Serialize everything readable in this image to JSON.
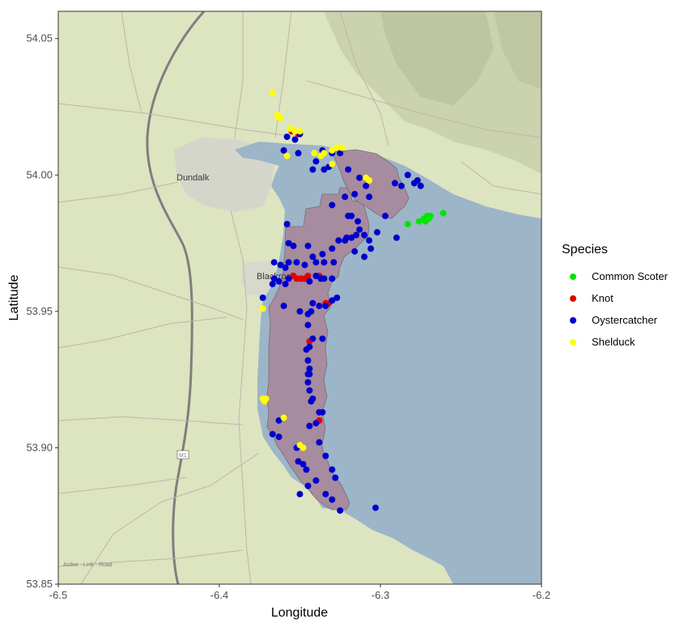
{
  "map": {
    "xlabel": "Longitude",
    "ylabel": "Latitude",
    "xlim": [
      -6.5,
      -6.2
    ],
    "ylim": [
      53.85,
      54.06
    ],
    "x_ticks": [
      -6.5,
      -6.4,
      -6.3,
      -6.2
    ],
    "y_ticks": [
      53.85,
      53.9,
      53.95,
      54.0,
      54.05
    ],
    "x_tick_labels": [
      "-6.5",
      "-6.4",
      "-6.3",
      "-6.2"
    ],
    "y_tick_labels": [
      "53.85",
      "53.90",
      "53.95",
      "54.00",
      "54.05"
    ],
    "place_labels": {
      "town": "Dundalk",
      "village": "Blackrock",
      "road": "Ardee - Link - Road",
      "motorway": "M1"
    },
    "colors": {
      "sea": "#9db5c9",
      "land": "#dde4c0",
      "survey_area": "#a8899d"
    }
  },
  "legend": {
    "title": "Species",
    "items": [
      {
        "label": "Common Scoter",
        "color": "#00e600"
      },
      {
        "label": "Knot",
        "color": "#e60000"
      },
      {
        "label": "Oystercatcher",
        "color": "#0000cc"
      },
      {
        "label": "Shelduck",
        "color": "#ffff00"
      }
    ]
  },
  "chart_data": {
    "type": "scatter",
    "xlabel": "Longitude",
    "ylabel": "Latitude",
    "xlim": [
      -6.5,
      -6.2
    ],
    "ylim": [
      53.85,
      54.06
    ],
    "series": [
      {
        "name": "Common Scoter",
        "color": "#00e600",
        "points": [
          [
            -6.283,
            53.982
          ],
          [
            -6.276,
            53.983
          ],
          [
            -6.273,
            53.984
          ],
          [
            -6.271,
            53.985
          ],
          [
            -6.27,
            53.984
          ],
          [
            -6.269,
            53.985
          ],
          [
            -6.272,
            53.983
          ],
          [
            -6.261,
            53.986
          ]
        ]
      },
      {
        "name": "Knot",
        "color": "#e60000",
        "points": [
          [
            -6.355,
            54.016
          ],
          [
            -6.351,
            54.015
          ],
          [
            -6.349,
            53.962
          ],
          [
            -6.352,
            53.962
          ],
          [
            -6.354,
            53.963
          ],
          [
            -6.347,
            53.962
          ],
          [
            -6.345,
            53.963
          ],
          [
            -6.35,
            53.962
          ],
          [
            -6.338,
            53.963
          ],
          [
            -6.334,
            53.953
          ],
          [
            -6.332,
            53.953
          ],
          [
            -6.344,
            53.939
          ],
          [
            -6.338,
            53.91
          ]
        ]
      },
      {
        "name": "Oystercatcher",
        "color": "#0000cc",
        "points": [
          [
            -6.358,
            54.014
          ],
          [
            -6.353,
            54.013
          ],
          [
            -6.35,
            54.015
          ],
          [
            -6.351,
            54.008
          ],
          [
            -6.36,
            54.009
          ],
          [
            -6.342,
            54.002
          ],
          [
            -6.34,
            54.005
          ],
          [
            -6.336,
            54.009
          ],
          [
            -6.33,
            54.008
          ],
          [
            -6.325,
            54.008
          ],
          [
            -6.332,
            54.003
          ],
          [
            -6.335,
            54.002
          ],
          [
            -6.32,
            54.002
          ],
          [
            -6.313,
            53.999
          ],
          [
            -6.309,
            53.996
          ],
          [
            -6.307,
            53.992
          ],
          [
            -6.297,
            53.985
          ],
          [
            -6.291,
            53.997
          ],
          [
            -6.283,
            54.0
          ],
          [
            -6.279,
            53.997
          ],
          [
            -6.277,
            53.998
          ],
          [
            -6.275,
            53.996
          ],
          [
            -6.287,
            53.996
          ],
          [
            -6.302,
            53.979
          ],
          [
            -6.29,
            53.977
          ],
          [
            -6.316,
            53.993
          ],
          [
            -6.322,
            53.992
          ],
          [
            -6.33,
            53.989
          ],
          [
            -6.322,
            53.976
          ],
          [
            -6.32,
            53.985
          ],
          [
            -6.318,
            53.985
          ],
          [
            -6.314,
            53.983
          ],
          [
            -6.31,
            53.978
          ],
          [
            -6.306,
            53.973
          ],
          [
            -6.358,
            53.982
          ],
          [
            -6.357,
            53.975
          ],
          [
            -6.354,
            53.974
          ],
          [
            -6.345,
            53.974
          ],
          [
            -6.342,
            53.97
          ],
          [
            -6.336,
            53.971
          ],
          [
            -6.33,
            53.973
          ],
          [
            -6.326,
            53.976
          ],
          [
            -6.321,
            53.977
          ],
          [
            -6.318,
            53.977
          ],
          [
            -6.315,
            53.978
          ],
          [
            -6.313,
            53.98
          ],
          [
            -6.316,
            53.972
          ],
          [
            -6.307,
            53.976
          ],
          [
            -6.31,
            53.97
          ],
          [
            -6.366,
            53.968
          ],
          [
            -6.362,
            53.967
          ],
          [
            -6.359,
            53.966
          ],
          [
            -6.357,
            53.968
          ],
          [
            -6.352,
            53.968
          ],
          [
            -6.347,
            53.967
          ],
          [
            -6.34,
            53.968
          ],
          [
            -6.335,
            53.968
          ],
          [
            -6.329,
            53.968
          ],
          [
            -6.33,
            53.962
          ],
          [
            -6.335,
            53.962
          ],
          [
            -6.366,
            53.962
          ],
          [
            -6.367,
            53.96
          ],
          [
            -6.363,
            53.961
          ],
          [
            -6.359,
            53.96
          ],
          [
            -6.357,
            53.962
          ],
          [
            -6.344,
            53.961
          ],
          [
            -6.34,
            53.963
          ],
          [
            -6.337,
            53.962
          ],
          [
            -6.373,
            53.955
          ],
          [
            -6.36,
            53.952
          ],
          [
            -6.342,
            53.953
          ],
          [
            -6.338,
            53.952
          ],
          [
            -6.334,
            53.952
          ],
          [
            -6.33,
            53.954
          ],
          [
            -6.327,
            53.955
          ],
          [
            -6.343,
            53.95
          ],
          [
            -6.345,
            53.949
          ],
          [
            -6.35,
            53.95
          ],
          [
            -6.345,
            53.945
          ],
          [
            -6.342,
            53.94
          ],
          [
            -6.344,
            53.937
          ],
          [
            -6.346,
            53.936
          ],
          [
            -6.345,
            53.932
          ],
          [
            -6.344,
            53.929
          ],
          [
            -6.344,
            53.927
          ],
          [
            -6.345,
            53.924
          ],
          [
            -6.344,
            53.921
          ],
          [
            -6.342,
            53.918
          ],
          [
            -6.343,
            53.917
          ],
          [
            -6.338,
            53.913
          ],
          [
            -6.336,
            53.913
          ],
          [
            -6.34,
            53.909
          ],
          [
            -6.344,
            53.908
          ],
          [
            -6.363,
            53.904
          ],
          [
            -6.367,
            53.905
          ],
          [
            -6.363,
            53.91
          ],
          [
            -6.352,
            53.9
          ],
          [
            -6.351,
            53.895
          ],
          [
            -6.348,
            53.894
          ],
          [
            -6.346,
            53.892
          ],
          [
            -6.338,
            53.902
          ],
          [
            -6.334,
            53.897
          ],
          [
            -6.33,
            53.892
          ],
          [
            -6.328,
            53.889
          ],
          [
            -6.34,
            53.888
          ],
          [
            -6.345,
            53.886
          ],
          [
            -6.35,
            53.883
          ],
          [
            -6.334,
            53.883
          ],
          [
            -6.33,
            53.881
          ],
          [
            -6.325,
            53.877
          ],
          [
            -6.303,
            53.878
          ],
          [
            -6.336,
            53.94
          ],
          [
            -6.345,
            53.927
          ]
        ]
      },
      {
        "name": "Shelduck",
        "color": "#ffff00",
        "points": [
          [
            -6.367,
            54.03
          ],
          [
            -6.364,
            54.022
          ],
          [
            -6.363,
            54.021
          ],
          [
            -6.362,
            54.021
          ],
          [
            -6.356,
            54.017
          ],
          [
            -6.353,
            54.016
          ],
          [
            -6.35,
            54.016
          ],
          [
            -6.358,
            54.007
          ],
          [
            -6.341,
            54.008
          ],
          [
            -6.337,
            54.007
          ],
          [
            -6.335,
            54.008
          ],
          [
            -6.33,
            54.009
          ],
          [
            -6.327,
            54.01
          ],
          [
            -6.324,
            54.01
          ],
          [
            -6.309,
            53.999
          ],
          [
            -6.307,
            53.998
          ],
          [
            -6.33,
            54.004
          ],
          [
            -6.373,
            53.951
          ],
          [
            -6.373,
            53.918
          ],
          [
            -6.372,
            53.917
          ],
          [
            -6.371,
            53.918
          ],
          [
            -6.36,
            53.911
          ],
          [
            -6.35,
            53.901
          ],
          [
            -6.348,
            53.9
          ]
        ]
      }
    ]
  }
}
